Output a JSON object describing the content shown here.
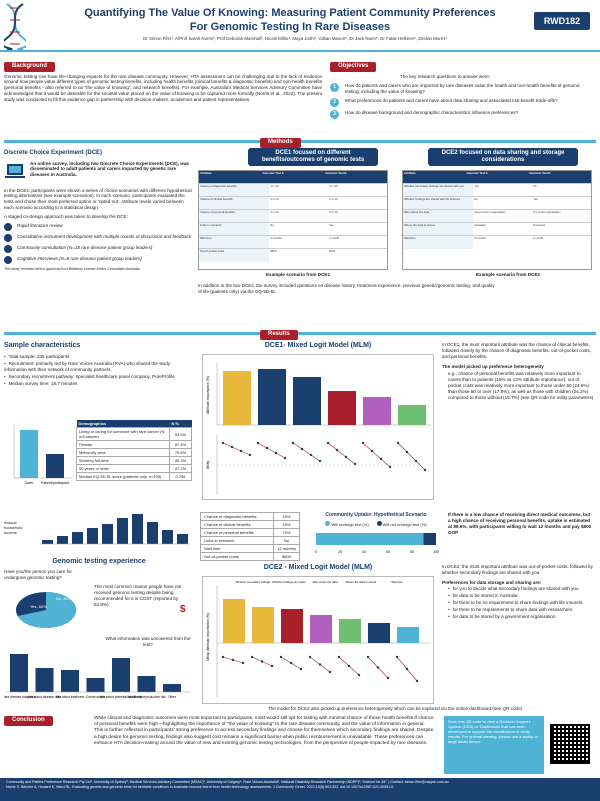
{
  "header": {
    "title_line1": "Quantifying The Value Of Knowing: Measuring Patient Community Preferences",
    "title_line2": "For Genomic Testing In Rare Diseases",
    "authors": "Dr Simon Fifer¹, A/Prof Sarah Norris², Prof Deborah Marshall³, Nicole Millis⁴, Maya Joshi¹, Gillian Mason⁵, Dr Jack Nunn⁶, Dr Falak Helkeen⁵, Declan Morris¹",
    "code": "RWD182"
  },
  "background": {
    "heading": "Background",
    "text": "Genomic testing can have life-changing impacts for the rare disease community. However, HTA assessment can be challenging due to the lack of evidence around how people value different types of genomic testing benefits, including health benefits (clinical benefits & diagnostic benefits) and non-health benefits (personal benefits - also referred to as \"the value of knowing\", and research benefits). For example, Australia's Medical Services Advisory Committee have acknowledged that it would be desirable for the societal value placed on the value of knowing to be captured more formally (Norris et al., 2022). The present study was conducted to fill this evidence gap in partnership with decision-makers, academics and patient representatives."
  },
  "objectives": {
    "heading": "Objectives",
    "intro": "The key research questions to answer were:",
    "items": [
      {
        "num": "1",
        "text": "How do patients and carers who are impacted by rare diseases value the health and non-health benefits of genomic testing, including the value of knowing?"
      },
      {
        "num": "2",
        "text": "What preferences do patients and carers have about data sharing and associated risk-benefit trade-offs?"
      },
      {
        "num": "3",
        "text": "How do disease background and demographic characteristics influence preferences?"
      }
    ]
  },
  "methods": {
    "heading": "Methods",
    "dce_title": "Discrete Choice Experiment (DCE)",
    "dce_text1": "An online survey, including two Discrete Choice Experiments (DCE), was disseminated to adult patients and carers impacted by genetic rare diseases in Australia.",
    "dce_text2": "In the DCEs, participants were shown a series of choice scenarios with different hypothetical testing alternatives (see example scenarios). In each scenario, participants evaluated the tests and chose their most preferred option or 'opted out'. Attribute levels varied between each scenario according to a statistical design.",
    "codesign_intro": "A staged co-design approach was taken to develop the DCE:",
    "steps": [
      "Rapid literature review",
      "Consultative instrument development with multiple rounds of discussion and feedback",
      "Community consultation (N=18 rare disease patient group leaders)",
      "Cognitive interviews (N=8 rare disease patient group leaders)"
    ],
    "ethics": "The study received ethics approval from Bellberry Human Ethics Committee Australia",
    "dce1_badge": "DCE1 focused on different benefits/outcomes of genomic tests",
    "dce2_badge": "DCE2 focused on data sharing and storage considerations",
    "dce1_caption": "Example scenario from DCE1",
    "dce2_caption": "Example scenario from DCE2",
    "dce1_rows": [
      "Chance of diagnostic benefits",
      "Chance of clinical benefits",
      "Chance of personal benefits",
      "Links to research",
      "Wait time",
      "Out-of-pocket costs"
    ],
    "dce1_cols": [
      "Attribute",
      "Genomic Test A",
      "Genomic Test B"
    ],
    "dce1_vals_a": [
      "1 in 10",
      "1 in 10",
      "1 in 10",
      "No",
      "6 months",
      "$500"
    ],
    "dce1_vals_b": [
      "2 in 10",
      "1 in 10",
      "5 in 10",
      "Yes",
      "1 month",
      "$100"
    ],
    "dce2_rows": [
      "Whether secondary findings are shared with you",
      "Whether findings are shared with life insurers",
      "Who stores the data",
      "Where the data is stored",
      "Wait time"
    ],
    "dce2_cols": [
      "Attribute",
      "Genomic Test A",
      "Genomic Test B"
    ],
    "dce2_vals_a": [
      "Yes",
      "No",
      "Government organisation",
      "Australia",
      "6 months"
    ],
    "dce2_vals_b": [
      "No",
      "Yes",
      "For-profit organisation",
      "Overseas",
      "1 month"
    ],
    "extra_text": "In addition to the two DCEs, the survey included questions on disease history, treatment experience, previous genetic/genomic testing, and quality of life (patients only) via the EQ-5D-5L."
  },
  "results": {
    "heading": "Results",
    "sample_title": "Sample characteristics",
    "sample_bullets": [
      "Total sample: 235 participants",
      "Recruitment: primarily led by Rare Voices Australia (RVA) who shared the study information with their network of community partners.",
      "Secondary recruitment pathway: specialist healthcare panel company, PureProfile",
      "Median survey time: 18.7 minutes"
    ],
    "demo_header": "Demographics",
    "demo_col": "N %",
    "demo_rows": [
      {
        "label": "Living or caring for someone with rare cancer (N not cancer)",
        "value": "53.5%"
      },
      {
        "label": "Female",
        "value": "57.4%"
      },
      {
        "label": "Metro/city area",
        "value": "70.6%"
      },
      {
        "label": "Working full-time",
        "value": "45.3%"
      },
      {
        "label": "50 years or older",
        "value": "47.2%"
      },
      {
        "label": "Median EQ-5D-5L score (patients only, n=105)",
        "value": "0.756"
      }
    ],
    "income_label": "Annual household income",
    "sample_bar_labels": [
      "Carer",
      "Patient/participant"
    ],
    "genomic_title": "Genomic testing experience",
    "genomic_q": "Have you/the person you care for undergone genomic testing?",
    "pie_labels": [
      "Yes, 60%",
      "No, 40%"
    ],
    "genomic_reason": "The most common reason people have not received genomic testing despite being recommended for it is COST (reported by 53.8%)",
    "uncovered_q": "What information was uncovered from the test?",
    "uncovered_labels": [
      "Rare disease diagnosis",
      "Info about disease risks",
      "Info about treatment",
      "Carrier status",
      "Info about potential health risk",
      "Info about reproductive risk",
      "Other"
    ]
  },
  "dce1_chart": {
    "title": "DCE1- Mixed Logit Model (MLM)",
    "y_label": "Attribute Importance (%)",
    "y_label_bottom": "Utility"
  },
  "dce1_text": {
    "p1": "In DCE1, the most important attribute was the chance of clinical benefits, followed closely by the chance of diagnostic benefits, out-of-pocket costs, and personal benefits.",
    "p2": "The model picked up preference heterogeneity",
    "p3": "e.g., chance of personal benefits was relatively more important to carers than to patients (15% vs 13% attribute importance); out of pocket costs was relatively more important to those under 50 (24.6%) than those 50 or over (17.8%), as well as those with children (24.2%) compared to those without (15.7%) (see QR code for utility parameters)"
  },
  "scenario": {
    "rows": [
      {
        "label": "Chance of diagnostic benefits",
        "value": "10%"
      },
      {
        "label": "Chance of clinical benefits",
        "value": "10%"
      },
      {
        "label": "Chance of personal benefits",
        "value": "70%"
      },
      {
        "label": "Links to research",
        "value": "No"
      },
      {
        "label": "Wait time",
        "value": "12 months"
      },
      {
        "label": "Out-of-pocket costs",
        "value": "$800"
      }
    ],
    "uptake_title": "Community Uptake: Hypothetical Scenario",
    "legend_will": "Will undergo test (%)",
    "legend_willnot": "Will not undergo test (%)",
    "ticks": [
      "0",
      "20",
      "40",
      "60",
      "80",
      "100"
    ],
    "side_text": "If there is a low chance of receiving direct medical outcomes, but a high chance of receiving personal benefits, uptake is estimated at 89.6%, with participants willing to wait 12 months and pay $800 OOP"
  },
  "dce2_chart": {
    "title": "DCE2 - Mixed Logit Model (MLM)",
    "y_label": "Utility, Attribute Importance (%)",
    "annotations": [
      "Whether secondary findings are shared with you",
      "Whether findings are shared with life insurers",
      "Who stores the data",
      "Where the data is stored",
      "Wait time"
    ]
  },
  "dce2_text": {
    "p1": "In DCE2, the most important attribute was out-of-pocket costs, followed by whether secondary findings are shared with you.",
    "p2": "Preferences for data storage and sharing are:",
    "bullets": [
      "for you to decide what secondary findings are shared with you",
      "for data to be stored in Australia",
      "for there to be no requirement to share findings with life insurers",
      "for there to be requirements to share data with researchers",
      "for data to be stored by a government organisation"
    ],
    "footnote": "The model for DCE2 also picked up preference heterogeneity which can be explored via the online dashboard (see QR code)"
  },
  "conclusion": {
    "heading": "Conclusion",
    "text": "While clinical and diagnostic outcomes were most important to participants, most would still opt for testing with minimal chance of these health benefits if chance of personal benefits were high—highlighting the importance of \"the value of knowing\" to the rare disease community, and the value of information in general. This is further reflected in participants' strong preference to access secondary findings and choose for themselves which secondary findings are shared. Despite a high desire for genomic testing, findings also suggest cost remains a significant barrier when public reimbursement is unavailable. These preferences can enhance HTA decision-making around the value of new and existing genomic testing technologies, from the perspective of people impacted by rare diseases.",
    "qr_text": "Scan this QR code to view a Decision Support System (DSS) or 'Dashboard' that has been developed to support the visualisation of study results. For optimal viewing, please use a laptop or large tablet device."
  },
  "footer": {
    "line1": "Community and Patient Preference Research Pty Ltd¹, University of Sydney², Medical Services Advisory Committee (MSAC)³, University of Calgary⁴, Rare Voices Australia⁵, National Disability Research Partnership (NDRP)⁶, Science for All⁷. | Contact: simon.fifer@cappre.com.au",
    "line2": "Norris S, Belcher A, Howard K, Ward RL. Evaluating genetic and genomic tests for heritable conditions in Australia: lessons learnt from health technology assessments. J Community Genet. 2022;13(5):503-522. doi:10.1007/s12687-021-00551-6"
  },
  "colors": {
    "navy": "#1a3e6e",
    "teal": "#4fb3d6",
    "red": "#a91f2a",
    "gold": "#e8b83a"
  }
}
